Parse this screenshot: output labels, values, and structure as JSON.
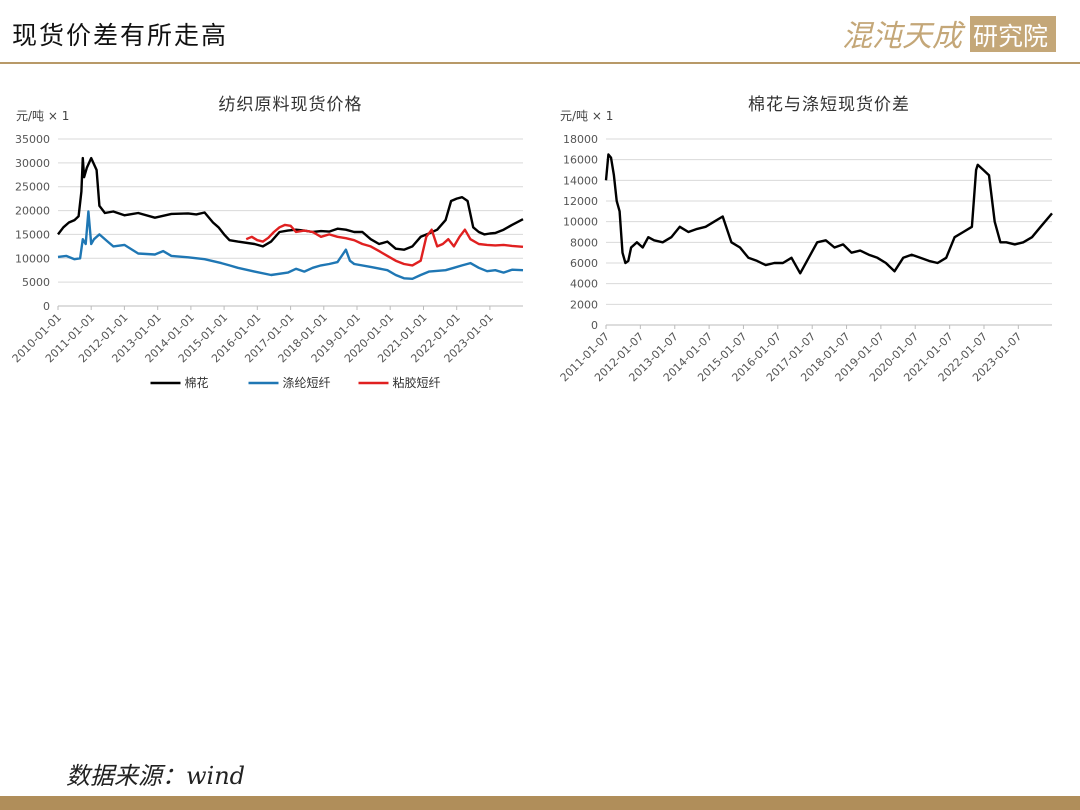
{
  "page": {
    "title": "现货价差有所走高",
    "logo_text": "混沌天成研究院",
    "source": "数据来源：wind"
  },
  "colors": {
    "accent": "#b89968",
    "cotton": "#000000",
    "polyester": "#1f77b4",
    "viscose": "#e02020",
    "grid": "#d9d9d9"
  },
  "chart_data": [
    {
      "type": "line",
      "title": "纺织原料现货价格",
      "unit_label": "元/吨 × 1",
      "ylim": [
        0,
        35000
      ],
      "yticks": [
        0,
        5000,
        10000,
        15000,
        20000,
        25000,
        30000,
        35000
      ],
      "xlim": [
        "2010-01-01",
        "2023-12-31"
      ],
      "xticks": [
        "2010-01-01",
        "2011-01-01",
        "2012-01-01",
        "2013-01-01",
        "2014-01-01",
        "2015-01-01",
        "2016-01-01",
        "2017-01-01",
        "2018-01-01",
        "2019-01-01",
        "2020-01-01",
        "2021-01-01",
        "2022-01-01",
        "2023-01-01"
      ],
      "grid": true,
      "legend_position": "bottom",
      "series": [
        {
          "name": "棉花",
          "color": "#000000",
          "points": [
            [
              "2010-01-01",
              15000
            ],
            [
              "2010-03-01",
              16500
            ],
            [
              "2010-05-01",
              17500
            ],
            [
              "2010-07-01",
              18000
            ],
            [
              "2010-08-15",
              18800
            ],
            [
              "2010-09-15",
              24000
            ],
            [
              "2010-10-01",
              31000
            ],
            [
              "2010-10-15",
              27000
            ],
            [
              "2010-11-15",
              29000
            ],
            [
              "2011-01-01",
              31000
            ],
            [
              "2011-03-01",
              28500
            ],
            [
              "2011-04-01",
              21000
            ],
            [
              "2011-06-01",
              19500
            ],
            [
              "2011-09-01",
              19800
            ],
            [
              "2012-01-01",
              19000
            ],
            [
              "2012-06-01",
              19500
            ],
            [
              "2012-12-01",
              18500
            ],
            [
              "2013-06-01",
              19300
            ],
            [
              "2013-12-01",
              19400
            ],
            [
              "2014-03-01",
              19200
            ],
            [
              "2014-06-01",
              19600
            ],
            [
              "2014-09-01",
              17500
            ],
            [
              "2014-11-01",
              16500
            ],
            [
              "2015-01-01",
              15000
            ],
            [
              "2015-03-01",
              13800
            ],
            [
              "2015-06-01",
              13500
            ],
            [
              "2015-12-01",
              13000
            ],
            [
              "2016-03-01",
              12500
            ],
            [
              "2016-06-01",
              13500
            ],
            [
              "2016-09-01",
              15500
            ],
            [
              "2016-12-01",
              15800
            ],
            [
              "2017-03-01",
              16000
            ],
            [
              "2017-06-01",
              15800
            ],
            [
              "2017-09-01",
              15500
            ],
            [
              "2017-12-01",
              15700
            ],
            [
              "2018-03-01",
              15600
            ],
            [
              "2018-06-01",
              16200
            ],
            [
              "2018-09-01",
              16000
            ],
            [
              "2018-12-01",
              15500
            ],
            [
              "2019-03-01",
              15500
            ],
            [
              "2019-06-01",
              14000
            ],
            [
              "2019-09-01",
              13000
            ],
            [
              "2019-12-01",
              13500
            ],
            [
              "2020-03-01",
              12000
            ],
            [
              "2020-06-01",
              11800
            ],
            [
              "2020-09-01",
              12500
            ],
            [
              "2020-12-01",
              14500
            ],
            [
              "2021-03-01",
              15200
            ],
            [
              "2021-06-01",
              16000
            ],
            [
              "2021-09-01",
              18000
            ],
            [
              "2021-11-01",
              22000
            ],
            [
              "2022-01-01",
              22500
            ],
            [
              "2022-03-01",
              22800
            ],
            [
              "2022-05-01",
              22000
            ],
            [
              "2022-07-01",
              16500
            ],
            [
              "2022-09-01",
              15500
            ],
            [
              "2022-11-01",
              15000
            ],
            [
              "2023-01-01",
              15200
            ],
            [
              "2023-03-01",
              15300
            ],
            [
              "2023-06-01",
              16000
            ],
            [
              "2023-09-01",
              17000
            ],
            [
              "2023-12-31",
              18200
            ]
          ]
        },
        {
          "name": "涤纶短纤",
          "color": "#1f77b4",
          "points": [
            [
              "2010-01-01",
              10300
            ],
            [
              "2010-04-01",
              10500
            ],
            [
              "2010-07-01",
              9800
            ],
            [
              "2010-09-01",
              10000
            ],
            [
              "2010-10-01",
              14000
            ],
            [
              "2010-11-01",
              13000
            ],
            [
              "2010-12-01",
              19800
            ],
            [
              "2011-01-01",
              13000
            ],
            [
              "2011-02-01",
              14000
            ],
            [
              "2011-04-01",
              15000
            ],
            [
              "2011-07-01",
              13500
            ],
            [
              "2011-09-01",
              12500
            ],
            [
              "2012-01-01",
              12800
            ],
            [
              "2012-06-01",
              11000
            ],
            [
              "2012-12-01",
              10800
            ],
            [
              "2013-03-01",
              11500
            ],
            [
              "2013-06-01",
              10500
            ],
            [
              "2013-12-01",
              10200
            ],
            [
              "2014-06-01",
              9800
            ],
            [
              "2014-12-01",
              9000
            ],
            [
              "2015-03-01",
              8500
            ],
            [
              "2015-06-01",
              8000
            ],
            [
              "2015-12-01",
              7200
            ],
            [
              "2016-06-01",
              6500
            ],
            [
              "2016-12-01",
              7000
            ],
            [
              "2017-03-01",
              7800
            ],
            [
              "2017-06-01",
              7200
            ],
            [
              "2017-09-01",
              8000
            ],
            [
              "2017-12-01",
              8500
            ],
            [
              "2018-03-01",
              8800
            ],
            [
              "2018-06-01",
              9200
            ],
            [
              "2018-09-01",
              11800
            ],
            [
              "2018-10-15",
              9500
            ],
            [
              "2018-12-01",
              8800
            ],
            [
              "2019-06-01",
              8200
            ],
            [
              "2019-12-01",
              7500
            ],
            [
              "2020-03-01",
              6500
            ],
            [
              "2020-06-01",
              5800
            ],
            [
              "2020-09-01",
              5700
            ],
            [
              "2020-12-01",
              6500
            ],
            [
              "2021-03-01",
              7200
            ],
            [
              "2021-09-01",
              7500
            ],
            [
              "2021-12-01",
              8000
            ],
            [
              "2022-03-01",
              8500
            ],
            [
              "2022-06-01",
              9000
            ],
            [
              "2022-09-01",
              8000
            ],
            [
              "2022-12-01",
              7300
            ],
            [
              "2023-03-01",
              7500
            ],
            [
              "2023-06-01",
              7000
            ],
            [
              "2023-09-01",
              7600
            ],
            [
              "2023-12-31",
              7500
            ]
          ]
        },
        {
          "name": "粘胶短纤",
          "color": "#e02020",
          "points": [
            [
              "2015-09-01",
              14000
            ],
            [
              "2015-11-01",
              14500
            ],
            [
              "2016-01-01",
              13800
            ],
            [
              "2016-03-01",
              13500
            ],
            [
              "2016-05-01",
              14300
            ],
            [
              "2016-07-01",
              15500
            ],
            [
              "2016-09-01",
              16500
            ],
            [
              "2016-11-01",
              17000
            ],
            [
              "2017-01-01",
              16800
            ],
            [
              "2017-03-01",
              15500
            ],
            [
              "2017-06-01",
              15800
            ],
            [
              "2017-09-01",
              15500
            ],
            [
              "2017-12-01",
              14500
            ],
            [
              "2018-03-01",
              15000
            ],
            [
              "2018-06-01",
              14500
            ],
            [
              "2018-09-01",
              14200
            ],
            [
              "2018-12-01",
              13800
            ],
            [
              "2019-03-01",
              13000
            ],
            [
              "2019-06-01",
              12500
            ],
            [
              "2019-09-01",
              11500
            ],
            [
              "2019-12-01",
              10500
            ],
            [
              "2020-03-01",
              9500
            ],
            [
              "2020-06-01",
              8800
            ],
            [
              "2020-09-01",
              8500
            ],
            [
              "2020-12-01",
              9500
            ],
            [
              "2021-02-01",
              14500
            ],
            [
              "2021-04-01",
              16000
            ],
            [
              "2021-06-01",
              12500
            ],
            [
              "2021-08-01",
              13000
            ],
            [
              "2021-10-01",
              14000
            ],
            [
              "2021-12-01",
              12500
            ],
            [
              "2022-02-01",
              14500
            ],
            [
              "2022-04-01",
              16000
            ],
            [
              "2022-06-01",
              14000
            ],
            [
              "2022-09-01",
              13000
            ],
            [
              "2022-12-01",
              12800
            ],
            [
              "2023-03-01",
              12700
            ],
            [
              "2023-06-01",
              12800
            ],
            [
              "2023-09-01",
              12600
            ],
            [
              "2023-12-31",
              12400
            ]
          ]
        }
      ]
    },
    {
      "type": "line",
      "title": "棉花与涤短现货价差",
      "unit_label": "元/吨 × 1",
      "ylim": [
        0,
        18000
      ],
      "yticks": [
        0,
        2000,
        4000,
        6000,
        8000,
        10000,
        12000,
        14000,
        16000,
        18000
      ],
      "xlim": [
        "2011-01-07",
        "2023-12-31"
      ],
      "xticks": [
        "2011-01-07",
        "2012-01-07",
        "2013-01-07",
        "2014-01-07",
        "2015-01-07",
        "2016-01-07",
        "2017-01-07",
        "2018-01-07",
        "2019-01-07",
        "2020-01-07",
        "2021-01-07",
        "2022-01-07",
        "2023-01-07"
      ],
      "grid": true,
      "series": [
        {
          "name": "",
          "color": "#000000",
          "points": [
            [
              "2011-01-07",
              14000
            ],
            [
              "2011-02-01",
              16500
            ],
            [
              "2011-03-01",
              16200
            ],
            [
              "2011-04-01",
              14500
            ],
            [
              "2011-05-01",
              12000
            ],
            [
              "2011-06-01",
              11000
            ],
            [
              "2011-07-01",
              7000
            ],
            [
              "2011-08-01",
              6000
            ],
            [
              "2011-09-01",
              6200
            ],
            [
              "2011-10-01",
              7500
            ],
            [
              "2011-12-01",
              8000
            ],
            [
              "2012-02-01",
              7500
            ],
            [
              "2012-04-01",
              8500
            ],
            [
              "2012-06-01",
              8200
            ],
            [
              "2012-09-01",
              8000
            ],
            [
              "2012-12-01",
              8500
            ],
            [
              "2013-03-01",
              9500
            ],
            [
              "2013-06-01",
              9000
            ],
            [
              "2013-09-01",
              9300
            ],
            [
              "2013-12-01",
              9500
            ],
            [
              "2014-03-01",
              10000
            ],
            [
              "2014-06-01",
              10500
            ],
            [
              "2014-09-01",
              8000
            ],
            [
              "2014-12-01",
              7500
            ],
            [
              "2015-03-01",
              6500
            ],
            [
              "2015-06-01",
              6200
            ],
            [
              "2015-09-01",
              5800
            ],
            [
              "2015-12-01",
              6000
            ],
            [
              "2016-03-01",
              6000
            ],
            [
              "2016-06-01",
              6500
            ],
            [
              "2016-09-01",
              5000
            ],
            [
              "2016-12-01",
              6500
            ],
            [
              "2017-03-01",
              8000
            ],
            [
              "2017-06-01",
              8200
            ],
            [
              "2017-09-01",
              7500
            ],
            [
              "2017-12-01",
              7800
            ],
            [
              "2018-03-01",
              7000
            ],
            [
              "2018-06-01",
              7200
            ],
            [
              "2018-09-01",
              6800
            ],
            [
              "2018-12-01",
              6500
            ],
            [
              "2019-03-01",
              6000
            ],
            [
              "2019-06-01",
              5200
            ],
            [
              "2019-09-01",
              6500
            ],
            [
              "2019-12-01",
              6800
            ],
            [
              "2020-03-01",
              6500
            ],
            [
              "2020-06-01",
              6200
            ],
            [
              "2020-09-01",
              6000
            ],
            [
              "2020-12-01",
              6500
            ],
            [
              "2021-03-01",
              8500
            ],
            [
              "2021-06-01",
              9000
            ],
            [
              "2021-09-01",
              9500
            ],
            [
              "2021-10-15",
              15000
            ],
            [
              "2021-11-01",
              15500
            ],
            [
              "2022-01-01",
              15000
            ],
            [
              "2022-03-01",
              14500
            ],
            [
              "2022-05-01",
              10000
            ],
            [
              "2022-07-01",
              8000
            ],
            [
              "2022-09-01",
              8000
            ],
            [
              "2022-12-01",
              7800
            ],
            [
              "2023-03-01",
              8000
            ],
            [
              "2023-06-01",
              8500
            ],
            [
              "2023-09-01",
              9500
            ],
            [
              "2023-12-31",
              10800
            ]
          ]
        }
      ]
    }
  ]
}
